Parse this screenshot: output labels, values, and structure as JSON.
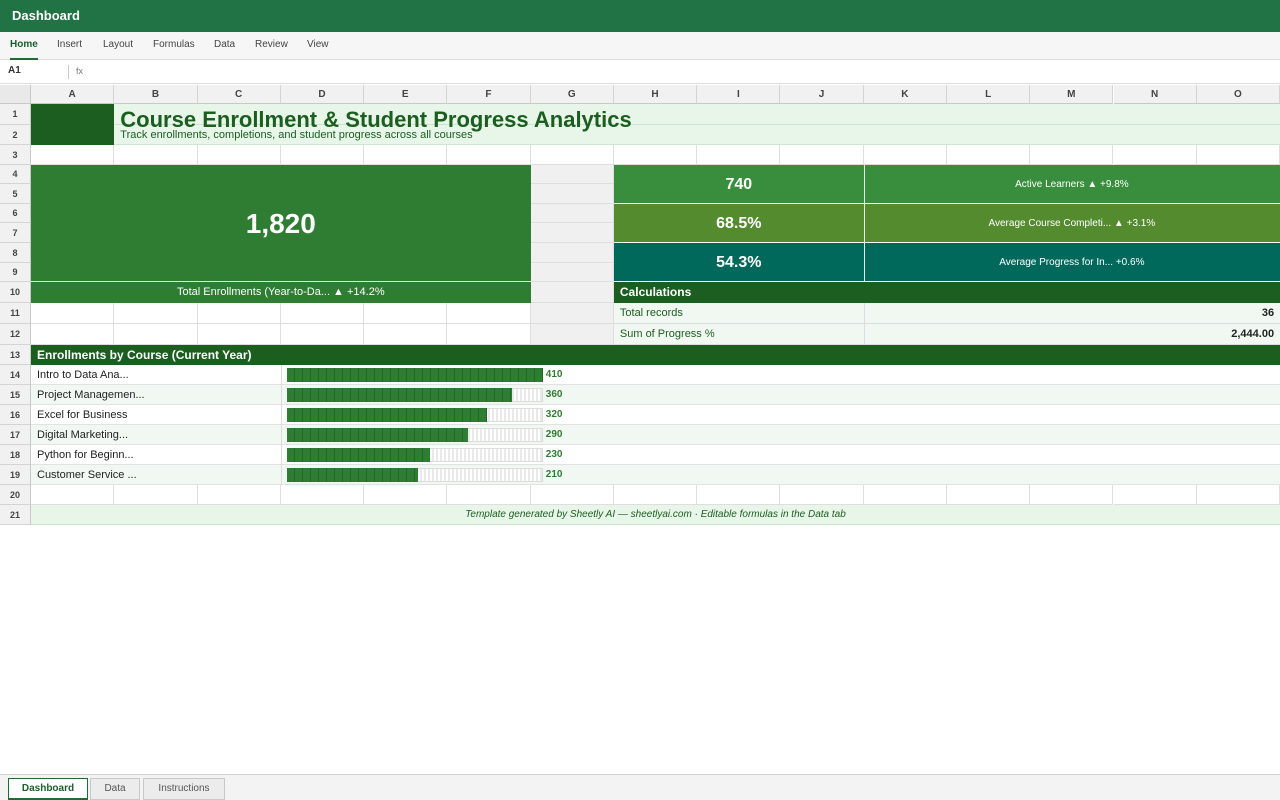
{
  "app": {
    "title": "Dashboard"
  },
  "ribbon": {
    "tabs": [
      {
        "label": "Home",
        "active": true
      },
      {
        "label": "Insert"
      },
      {
        "label": "Layout"
      },
      {
        "label": "Formulas"
      },
      {
        "label": "Data"
      },
      {
        "label": "Review"
      },
      {
        "label": "View"
      }
    ]
  },
  "formula_bar": {
    "cell_ref": "A1",
    "fx": "fx",
    "value": ""
  },
  "grid": {
    "columns": [
      "A",
      "B",
      "C",
      "D",
      "E",
      "F",
      "G",
      "H",
      "I",
      "J",
      "K",
      "L",
      "M",
      "N",
      "O"
    ],
    "rows": [
      "1",
      "2",
      "3",
      "4",
      "5",
      "6",
      "7",
      "8",
      "9",
      "10",
      "11",
      "12",
      "13",
      "14",
      "15",
      "16",
      "17",
      "18",
      "19",
      "20",
      "21"
    ]
  },
  "dashboard": {
    "title": "Course Enrollment & Student Progress Analytics",
    "subtitle": "Track enrollments, completions, and student progress across all courses",
    "main_kpi": {
      "value": "1,820",
      "label": "Total Enrollments (Year-to-Da... ▲ +14.2%"
    },
    "kpis": [
      {
        "value": "740",
        "label": "Active Learners ▲ +9.8%",
        "color": "#388e3c"
      },
      {
        "value": "68.5%",
        "label": "Average Course Completi... ▲ +3.1%",
        "color": "#558b2f"
      },
      {
        "value": "54.3%",
        "label": "Average Progress for In... +0.6%",
        "color": "#00695c"
      }
    ],
    "calculations": {
      "header": "Calculations",
      "rows": [
        {
          "label": "Total records",
          "value": "36"
        },
        {
          "label": "Sum of Progress %",
          "value": "2,444.00"
        }
      ]
    },
    "enrollments_section": {
      "header": "Enrollments by Course (Current Year)"
    },
    "footer": "Template generated by Sheetly AI — sheetlyai.com · Editable formulas in the Data tab"
  },
  "chart_data": {
    "type": "bar",
    "orientation": "horizontal",
    "title": "Enrollments by Course (Current Year)",
    "categories": [
      "Intro to Data Ana...",
      "Project Managemen...",
      "Excel for Business",
      "Digital Marketing...",
      "Python for Beginn...",
      "Customer Service ..."
    ],
    "values": [
      410,
      360,
      320,
      290,
      230,
      210
    ],
    "max": 410,
    "color": "#2e7d32"
  },
  "colors": {
    "brand": "#217346",
    "dark_green": "#1b5e20",
    "main_kpi_bg": "#2e7d32",
    "title_text": "#1b5e20",
    "light_row": "#f1f8f1",
    "title_bg": "#e8f5e9"
  },
  "sheet_tabs": [
    {
      "label": "Dashboard",
      "active": true
    },
    {
      "label": "Data"
    },
    {
      "label": "Instructions"
    }
  ]
}
